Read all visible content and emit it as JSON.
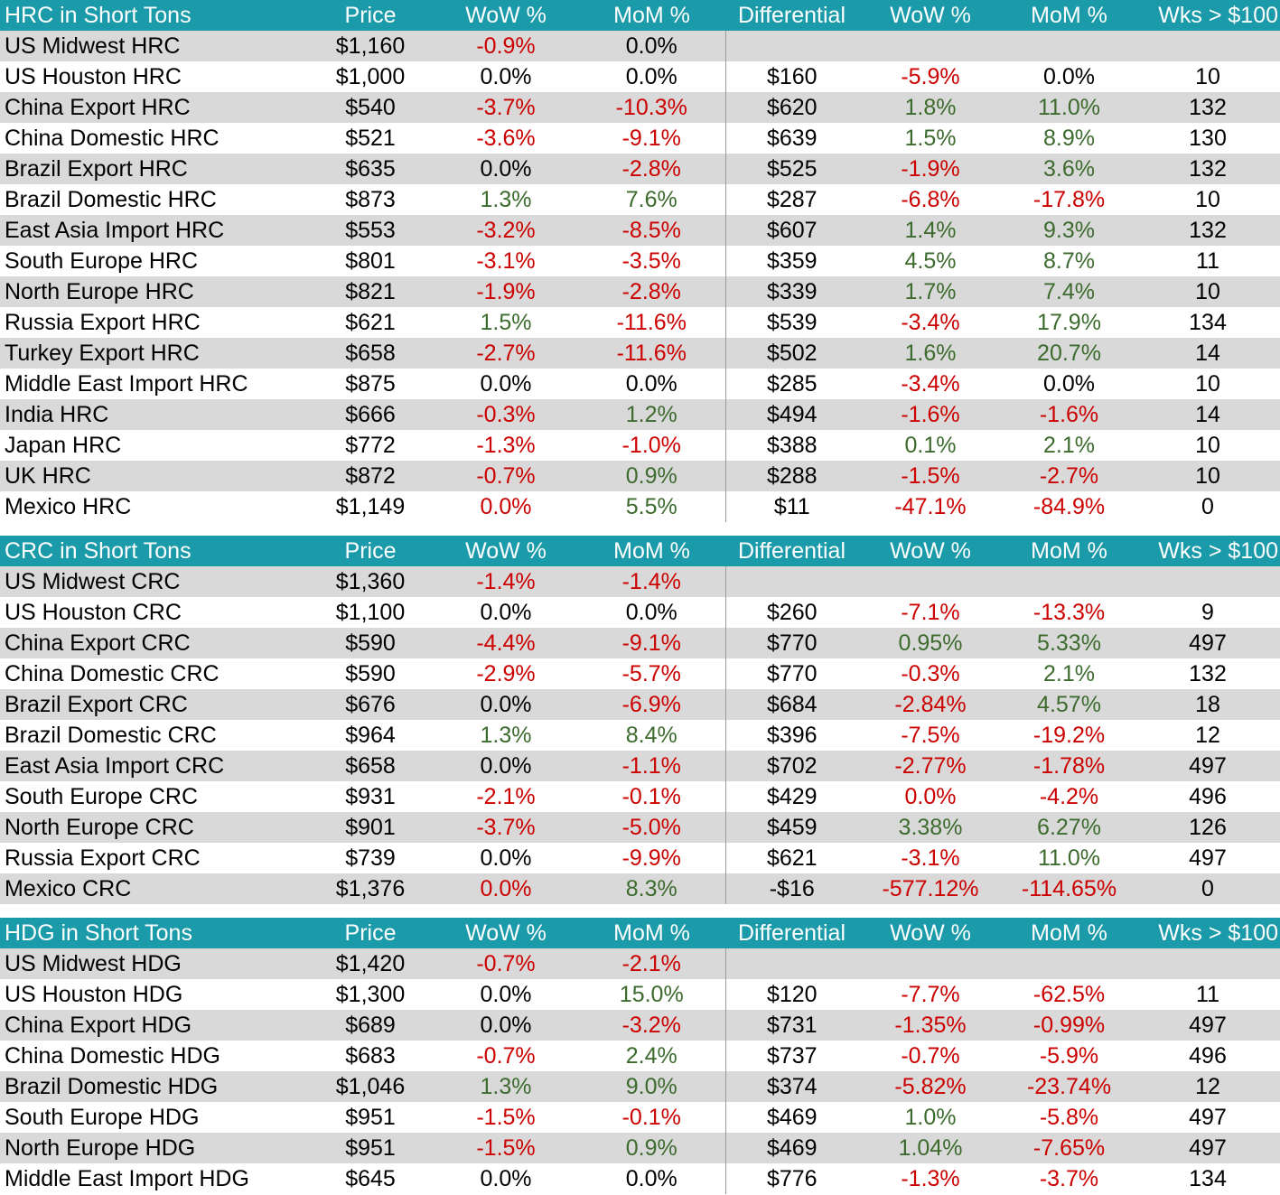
{
  "colors": {
    "header_bg": "#1b9aaa",
    "header_text": "#ffffff",
    "shade": "#d9d9d9",
    "negative": "#cc0000",
    "positive": "#3d6b2e",
    "neutral": "#000000"
  },
  "sections": [
    {
      "headers": [
        "HRC in Short Tons",
        "Price",
        "WoW %",
        "MoM %",
        "Differential",
        "WoW %",
        "MoM %",
        "Wks > $100"
      ],
      "rows": [
        [
          "US Midwest HRC",
          "$1,160",
          "-0.9%",
          "0.0%",
          "",
          "",
          "",
          ""
        ],
        [
          "US Houston HRC",
          "$1,000",
          "0.0%",
          "0.0%",
          "$160",
          "-5.9%",
          "0.0%",
          "10"
        ],
        [
          "China Export HRC",
          "$540",
          "-3.7%",
          "-10.3%",
          "$620",
          "1.8%",
          "11.0%",
          "132"
        ],
        [
          "China Domestic HRC",
          "$521",
          "-3.6%",
          "-9.1%",
          "$639",
          "1.5%",
          "8.9%",
          "130"
        ],
        [
          "Brazil Export HRC",
          "$635",
          "0.0%",
          "-2.8%",
          "$525",
          "-1.9%",
          "3.6%",
          "132"
        ],
        [
          "Brazil Domestic HRC",
          "$873",
          "1.3%",
          "7.6%",
          "$287",
          "-6.8%",
          "-17.8%",
          "10"
        ],
        [
          "East Asia Import HRC",
          "$553",
          "-3.2%",
          "-8.5%",
          "$607",
          "1.4%",
          "9.3%",
          "132"
        ],
        [
          "South Europe HRC",
          "$801",
          "-3.1%",
          "-3.5%",
          "$359",
          "4.5%",
          "8.7%",
          "11"
        ],
        [
          "North Europe HRC",
          "$821",
          "-1.9%",
          "-2.8%",
          "$339",
          "1.7%",
          "7.4%",
          "10"
        ],
        [
          "Russia Export HRC",
          "$621",
          "1.5%",
          "-11.6%",
          "$539",
          "-3.4%",
          "17.9%",
          "134"
        ],
        [
          "Turkey Export HRC",
          "$658",
          "-2.7%",
          "-11.6%",
          "$502",
          "1.6%",
          "20.7%",
          "14"
        ],
        [
          "Middle East Import HRC",
          "$875",
          "0.0%",
          "0.0%",
          "$285",
          "-3.4%",
          "0.0%",
          "10"
        ],
        [
          "India HRC",
          "$666",
          "-0.3%",
          "1.2%",
          "$494",
          "-1.6%",
          "-1.6%",
          "14"
        ],
        [
          "Japan HRC",
          "$772",
          "-1.3%",
          "-1.0%",
          "$388",
          "0.1%",
          "2.1%",
          "10"
        ],
        [
          "UK HRC",
          "$872",
          "-0.7%",
          "0.9%",
          "$288",
          "-1.5%",
          "-2.7%",
          "10"
        ],
        [
          "Mexico HRC",
          "$1,149",
          "0.0%",
          "5.5%",
          "$11",
          "-47.1%",
          "-84.9%",
          "0"
        ]
      ],
      "tones": [
        [
          "",
          "",
          "neg",
          "neu",
          "",
          "",
          "",
          ""
        ],
        [
          "",
          "",
          "neu",
          "neu",
          "",
          "neg",
          "neu",
          ""
        ],
        [
          "",
          "",
          "neg",
          "neg",
          "",
          "pos",
          "pos",
          ""
        ],
        [
          "",
          "",
          "neg",
          "neg",
          "",
          "pos",
          "pos",
          ""
        ],
        [
          "",
          "",
          "neu",
          "neg",
          "",
          "neg",
          "pos",
          ""
        ],
        [
          "",
          "",
          "pos",
          "pos",
          "",
          "neg",
          "neg",
          ""
        ],
        [
          "",
          "",
          "neg",
          "neg",
          "",
          "pos",
          "pos",
          ""
        ],
        [
          "",
          "",
          "neg",
          "neg",
          "",
          "pos",
          "pos",
          ""
        ],
        [
          "",
          "",
          "neg",
          "neg",
          "",
          "pos",
          "pos",
          ""
        ],
        [
          "",
          "",
          "pos",
          "neg",
          "",
          "neg",
          "pos",
          ""
        ],
        [
          "",
          "",
          "neg",
          "neg",
          "",
          "pos",
          "pos",
          ""
        ],
        [
          "",
          "",
          "neu",
          "neu",
          "",
          "neg",
          "neu",
          ""
        ],
        [
          "",
          "",
          "neg",
          "pos",
          "",
          "neg",
          "neg",
          ""
        ],
        [
          "",
          "",
          "neg",
          "neg",
          "",
          "pos",
          "pos",
          ""
        ],
        [
          "",
          "",
          "neg",
          "pos",
          "",
          "neg",
          "neg",
          ""
        ],
        [
          "",
          "",
          "neg",
          "pos",
          "",
          "neg",
          "neg",
          ""
        ]
      ]
    },
    {
      "headers": [
        "CRC in Short Tons",
        "Price",
        "WoW %",
        "MoM %",
        "Differential",
        "WoW %",
        "MoM %",
        "Wks > $100"
      ],
      "rows": [
        [
          "US Midwest CRC",
          "$1,360",
          "-1.4%",
          "-1.4%",
          "",
          "",
          "",
          ""
        ],
        [
          "US Houston CRC",
          "$1,100",
          "0.0%",
          "0.0%",
          "$260",
          "-7.1%",
          "-13.3%",
          "9"
        ],
        [
          "China Export CRC",
          "$590",
          "-4.4%",
          "-9.1%",
          "$770",
          "0.95%",
          "5.33%",
          "497"
        ],
        [
          "China Domestic CRC",
          "$590",
          "-2.9%",
          "-5.7%",
          "$770",
          "-0.3%",
          "2.1%",
          "132"
        ],
        [
          "Brazil Export CRC",
          "$676",
          "0.0%",
          "-6.9%",
          "$684",
          "-2.84%",
          "4.57%",
          "18"
        ],
        [
          "Brazil Domestic CRC",
          "$964",
          "1.3%",
          "8.4%",
          "$396",
          "-7.5%",
          "-19.2%",
          "12"
        ],
        [
          "East Asia Import CRC",
          "$658",
          "0.0%",
          "-1.1%",
          "$702",
          "-2.77%",
          "-1.78%",
          "497"
        ],
        [
          "South Europe CRC",
          "$931",
          "-2.1%",
          "-0.1%",
          "$429",
          "0.0%",
          "-4.2%",
          "496"
        ],
        [
          "North Europe CRC",
          "$901",
          "-3.7%",
          "-5.0%",
          "$459",
          "3.38%",
          "6.27%",
          "126"
        ],
        [
          "Russia Export CRC",
          "$739",
          "0.0%",
          "-9.9%",
          "$621",
          "-3.1%",
          "11.0%",
          "497"
        ],
        [
          "Mexico CRC",
          "$1,376",
          "0.0%",
          "8.3%",
          "-$16",
          "-577.12%",
          "-114.65%",
          "0"
        ]
      ],
      "tones": [
        [
          "",
          "",
          "neg",
          "neg",
          "",
          "",
          "",
          ""
        ],
        [
          "",
          "",
          "neu",
          "neu",
          "",
          "neg",
          "neg",
          ""
        ],
        [
          "",
          "",
          "neg",
          "neg",
          "",
          "pos",
          "pos",
          ""
        ],
        [
          "",
          "",
          "neg",
          "neg",
          "",
          "neg",
          "pos",
          ""
        ],
        [
          "",
          "",
          "neu",
          "neg",
          "",
          "neg",
          "pos",
          ""
        ],
        [
          "",
          "",
          "pos",
          "pos",
          "",
          "neg",
          "neg",
          ""
        ],
        [
          "",
          "",
          "neu",
          "neg",
          "",
          "neg",
          "neg",
          ""
        ],
        [
          "",
          "",
          "neg",
          "neg",
          "",
          "neg",
          "neg",
          ""
        ],
        [
          "",
          "",
          "neg",
          "neg",
          "",
          "pos",
          "pos",
          ""
        ],
        [
          "",
          "",
          "neu",
          "neg",
          "",
          "neg",
          "pos",
          ""
        ],
        [
          "",
          "",
          "neg",
          "pos",
          "",
          "neg",
          "neg",
          ""
        ]
      ]
    },
    {
      "headers": [
        "HDG in Short Tons",
        "Price",
        "WoW %",
        "MoM %",
        "Differential",
        "WoW %",
        "MoM %",
        "Wks > $100"
      ],
      "rows": [
        [
          "US Midwest HDG",
          "$1,420",
          "-0.7%",
          "-2.1%",
          "",
          "",
          "",
          ""
        ],
        [
          "US Houston HDG",
          "$1,300",
          "0.0%",
          "15.0%",
          "$120",
          "-7.7%",
          "-62.5%",
          "11"
        ],
        [
          "China Export HDG",
          "$689",
          "0.0%",
          "-3.2%",
          "$731",
          "-1.35%",
          "-0.99%",
          "497"
        ],
        [
          "China Domestic HDG",
          "$683",
          "-0.7%",
          "2.4%",
          "$737",
          "-0.7%",
          "-5.9%",
          "496"
        ],
        [
          "Brazil Domestic HDG",
          "$1,046",
          "1.3%",
          "9.0%",
          "$374",
          "-5.82%",
          "-23.74%",
          "12"
        ],
        [
          "South Europe HDG",
          "$951",
          "-1.5%",
          "-0.1%",
          "$469",
          "1.0%",
          "-5.8%",
          "497"
        ],
        [
          "North Europe HDG",
          "$951",
          "-1.5%",
          "0.9%",
          "$469",
          "1.04%",
          "-7.65%",
          "497"
        ],
        [
          "Middle East Import HDG",
          "$645",
          "0.0%",
          "0.0%",
          "$776",
          "-1.3%",
          "-3.7%",
          "134"
        ]
      ],
      "tones": [
        [
          "",
          "",
          "neg",
          "neg",
          "",
          "",
          "",
          ""
        ],
        [
          "",
          "",
          "neu",
          "pos",
          "",
          "neg",
          "neg",
          ""
        ],
        [
          "",
          "",
          "neu",
          "neg",
          "",
          "neg",
          "neg",
          ""
        ],
        [
          "",
          "",
          "neg",
          "pos",
          "",
          "neg",
          "neg",
          ""
        ],
        [
          "",
          "",
          "pos",
          "pos",
          "",
          "neg",
          "neg",
          ""
        ],
        [
          "",
          "",
          "neg",
          "neg",
          "",
          "pos",
          "neg",
          ""
        ],
        [
          "",
          "",
          "neg",
          "pos",
          "",
          "pos",
          "neg",
          ""
        ],
        [
          "",
          "",
          "neu",
          "neu",
          "",
          "neg",
          "neg",
          ""
        ]
      ]
    }
  ]
}
